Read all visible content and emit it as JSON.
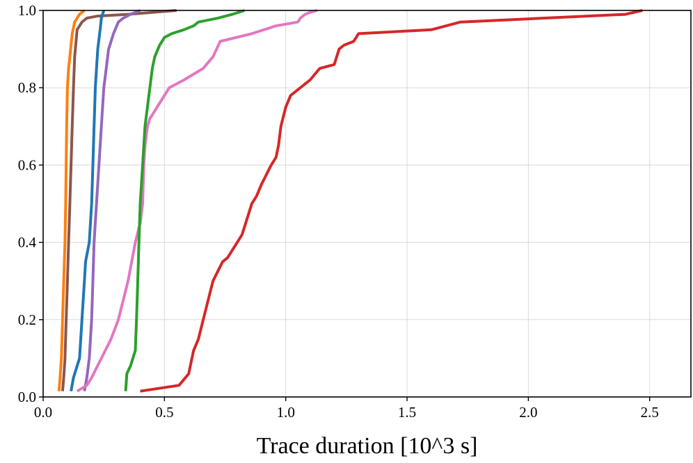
{
  "chart_data": {
    "type": "line",
    "title": "",
    "xlabel": "Trace duration [10^3 s]",
    "ylabel": "",
    "xlim": [
      0.0,
      2.67
    ],
    "ylim": [
      0.0,
      1.0
    ],
    "grid": true,
    "x_ticks": [
      0.0,
      0.5,
      1.0,
      1.5,
      2.0,
      2.5
    ],
    "x_tick_labels": [
      "0.0",
      "0.5",
      "1.0",
      "1.5",
      "2.0",
      "2.5"
    ],
    "y_ticks": [
      0.0,
      0.2,
      0.4,
      0.6,
      0.8,
      1.0
    ],
    "y_tick_labels": [
      "0.0",
      "0.2",
      "0.4",
      "0.6",
      "0.8",
      "1.0"
    ],
    "series": [
      {
        "name": "orange",
        "color": "#ff7f0e",
        "x": [
          0.065,
          0.07,
          0.075,
          0.08,
          0.085,
          0.09,
          0.093,
          0.095,
          0.097,
          0.1,
          0.105,
          0.11,
          0.115,
          0.12,
          0.13,
          0.15,
          0.17
        ],
        "y": [
          0.015,
          0.05,
          0.1,
          0.2,
          0.3,
          0.4,
          0.5,
          0.6,
          0.7,
          0.8,
          0.85,
          0.88,
          0.91,
          0.94,
          0.97,
          0.99,
          1.0
        ]
      },
      {
        "name": "brown",
        "color": "#8c564b",
        "x": [
          0.08,
          0.085,
          0.09,
          0.095,
          0.1,
          0.105,
          0.11,
          0.115,
          0.12,
          0.125,
          0.13,
          0.14,
          0.16,
          0.18,
          0.22,
          0.35,
          0.55
        ],
        "y": [
          0.015,
          0.05,
          0.1,
          0.2,
          0.3,
          0.4,
          0.5,
          0.6,
          0.7,
          0.8,
          0.88,
          0.95,
          0.97,
          0.98,
          0.985,
          0.99,
          1.0
        ]
      },
      {
        "name": "blue",
        "color": "#1f77b4",
        "x": [
          0.115,
          0.125,
          0.15,
          0.16,
          0.17,
          0.175,
          0.19,
          0.2,
          0.205,
          0.21,
          0.215,
          0.22,
          0.225,
          0.235,
          0.24,
          0.245,
          0.25
        ],
        "y": [
          0.015,
          0.05,
          0.1,
          0.2,
          0.3,
          0.35,
          0.4,
          0.5,
          0.6,
          0.7,
          0.8,
          0.85,
          0.9,
          0.95,
          0.98,
          0.99,
          1.0
        ]
      },
      {
        "name": "purple",
        "color": "#9467bd",
        "x": [
          0.17,
          0.18,
          0.19,
          0.2,
          0.205,
          0.21,
          0.22,
          0.23,
          0.24,
          0.25,
          0.26,
          0.27,
          0.29,
          0.31,
          0.33,
          0.36,
          0.4
        ],
        "y": [
          0.015,
          0.05,
          0.1,
          0.2,
          0.3,
          0.4,
          0.5,
          0.6,
          0.7,
          0.8,
          0.85,
          0.9,
          0.94,
          0.97,
          0.98,
          0.99,
          1.0
        ]
      },
      {
        "name": "pink",
        "color": "#e377c2",
        "x": [
          0.14,
          0.18,
          0.2,
          0.24,
          0.28,
          0.31,
          0.33,
          0.35,
          0.365,
          0.38,
          0.4,
          0.41,
          0.415,
          0.42,
          0.43,
          0.44,
          0.47,
          0.52,
          0.58,
          0.66,
          0.7,
          0.73,
          0.86,
          0.96,
          1.05,
          1.06,
          1.08,
          1.1,
          1.13
        ],
        "y": [
          0.015,
          0.03,
          0.05,
          0.1,
          0.15,
          0.2,
          0.25,
          0.3,
          0.35,
          0.4,
          0.45,
          0.5,
          0.6,
          0.65,
          0.7,
          0.72,
          0.75,
          0.8,
          0.82,
          0.85,
          0.88,
          0.92,
          0.94,
          0.96,
          0.97,
          0.98,
          0.99,
          0.995,
          1.0
        ]
      },
      {
        "name": "green",
        "color": "#2ca02c",
        "x": [
          0.34,
          0.345,
          0.36,
          0.38,
          0.385,
          0.39,
          0.395,
          0.4,
          0.41,
          0.42,
          0.44,
          0.45,
          0.46,
          0.48,
          0.49,
          0.5,
          0.53,
          0.58,
          0.62,
          0.64,
          0.72,
          0.78,
          0.83
        ],
        "y": [
          0.015,
          0.06,
          0.08,
          0.12,
          0.2,
          0.3,
          0.4,
          0.5,
          0.6,
          0.7,
          0.8,
          0.85,
          0.88,
          0.91,
          0.92,
          0.93,
          0.94,
          0.95,
          0.96,
          0.97,
          0.98,
          0.99,
          1.0
        ]
      },
      {
        "name": "red",
        "color": "#d62728",
        "x": [
          0.4,
          0.56,
          0.6,
          0.62,
          0.64,
          0.66,
          0.68,
          0.7,
          0.74,
          0.76,
          0.8,
          0.82,
          0.86,
          0.88,
          0.9,
          0.94,
          0.96,
          0.97,
          0.98,
          1.0,
          1.02,
          1.06,
          1.1,
          1.14,
          1.2,
          1.22,
          1.24,
          1.28,
          1.3,
          1.6,
          1.72,
          2.4,
          2.47
        ],
        "y": [
          0.015,
          0.03,
          0.06,
          0.12,
          0.15,
          0.2,
          0.25,
          0.3,
          0.35,
          0.36,
          0.4,
          0.42,
          0.5,
          0.52,
          0.55,
          0.6,
          0.62,
          0.65,
          0.7,
          0.75,
          0.78,
          0.8,
          0.82,
          0.85,
          0.86,
          0.9,
          0.91,
          0.92,
          0.94,
          0.95,
          0.97,
          0.99,
          1.0
        ]
      }
    ]
  }
}
